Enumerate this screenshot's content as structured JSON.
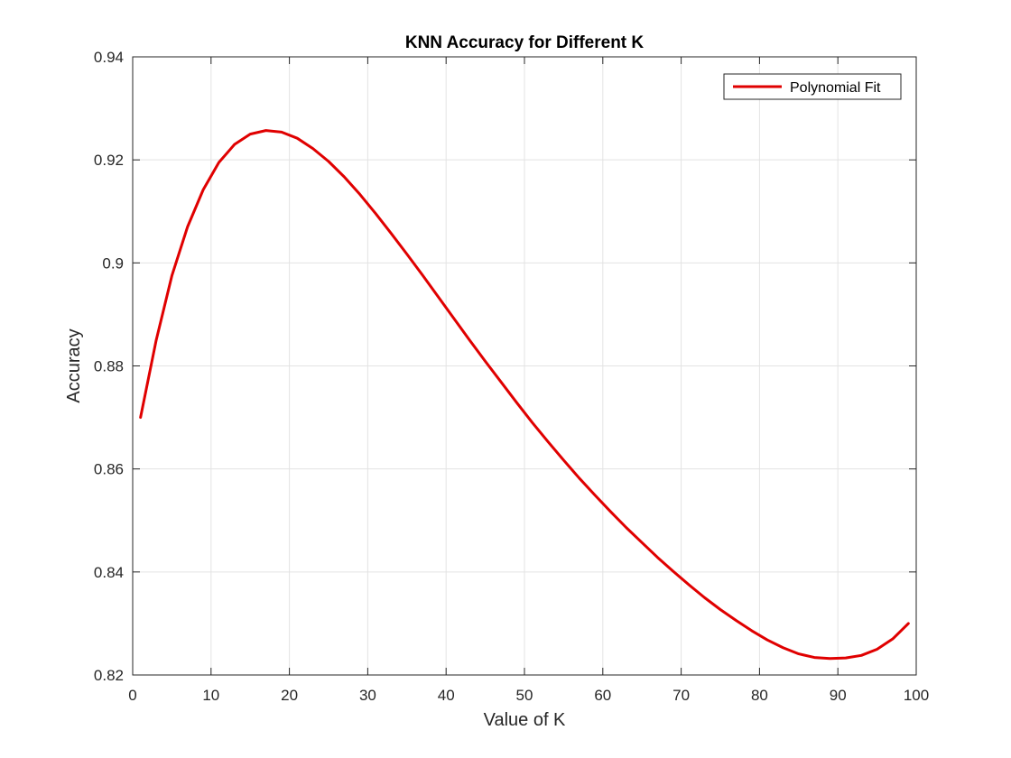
{
  "chart_data": {
    "type": "line",
    "title": "KNN Accuracy for Different K",
    "xlabel": "Value of K",
    "ylabel": "Accuracy",
    "xlim": [
      0,
      100
    ],
    "ylim": [
      0.82,
      0.94
    ],
    "xticks": [
      0,
      10,
      20,
      30,
      40,
      50,
      60,
      70,
      80,
      90,
      100
    ],
    "xtick_labels": [
      "0",
      "10",
      "20",
      "30",
      "40",
      "50",
      "60",
      "70",
      "80",
      "90",
      "100"
    ],
    "yticks": [
      0.82,
      0.84,
      0.86,
      0.88,
      0.9,
      0.92,
      0.94
    ],
    "ytick_labels": [
      "0.82",
      "0.84",
      "0.86",
      "0.88",
      "0.9",
      "0.92",
      "0.94"
    ],
    "grid": true,
    "legend_position": "top-right",
    "colors": {
      "series": "#e00000",
      "axis": "#262626",
      "grid": "#e3e3e3"
    },
    "series": [
      {
        "name": "Polynomial Fit",
        "x": [
          1,
          3,
          5,
          7,
          9,
          11,
          13,
          15,
          17,
          19,
          21,
          23,
          25,
          27,
          29,
          31,
          33,
          35,
          37,
          39,
          41,
          43,
          45,
          47,
          49,
          51,
          53,
          55,
          57,
          59,
          61,
          63,
          65,
          67,
          69,
          71,
          73,
          75,
          77,
          79,
          81,
          83,
          85,
          87,
          89,
          91,
          93,
          95,
          97,
          99
        ],
        "y": [
          0.87,
          0.885,
          0.8975,
          0.907,
          0.9142,
          0.9195,
          0.923,
          0.925,
          0.9257,
          0.9254,
          0.9242,
          0.9222,
          0.9197,
          0.9167,
          0.9133,
          0.9096,
          0.9057,
          0.9017,
          0.8976,
          0.8934,
          0.8892,
          0.885,
          0.8809,
          0.8769,
          0.8729,
          0.869,
          0.8653,
          0.8617,
          0.8582,
          0.8549,
          0.8517,
          0.8486,
          0.8457,
          0.8428,
          0.8401,
          0.8375,
          0.835,
          0.8327,
          0.8306,
          0.8286,
          0.8268,
          0.8253,
          0.8241,
          0.8234,
          0.8232,
          0.8233,
          0.8238,
          0.825,
          0.827,
          0.83
        ]
      }
    ]
  }
}
